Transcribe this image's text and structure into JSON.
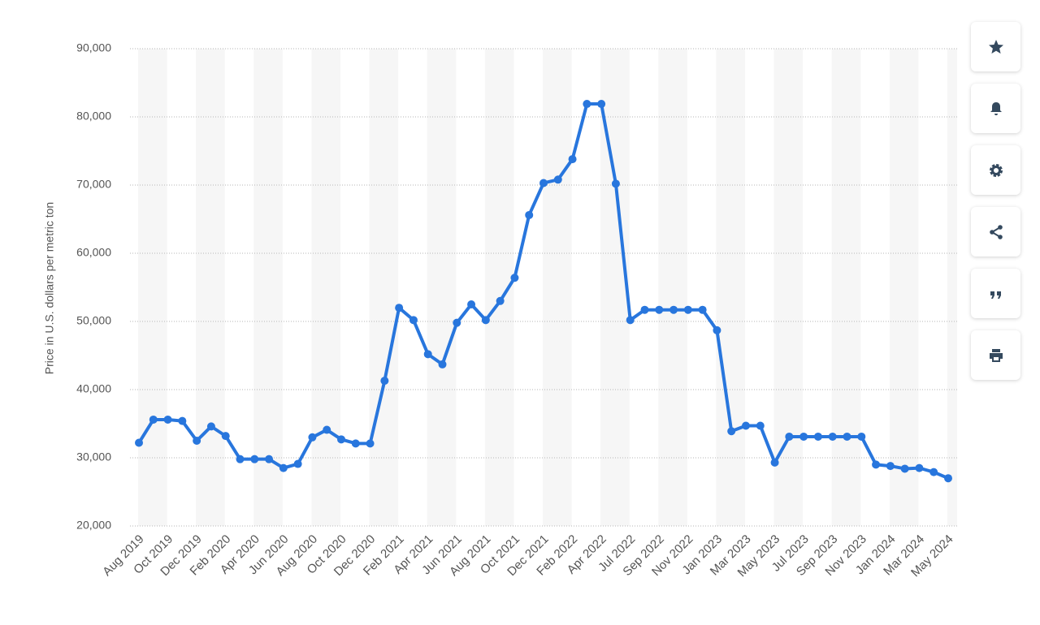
{
  "chart_data": {
    "type": "line",
    "y_label": "Price in U.S. dollars per metric ton",
    "categories": [
      "Aug 2019",
      null,
      "Oct 2019",
      null,
      "Dec 2019",
      null,
      "Feb 2020",
      null,
      "Apr 2020",
      null,
      "Jun 2020",
      null,
      "Aug 2020",
      null,
      "Oct 2020",
      null,
      "Dec 2020",
      null,
      "Feb 2021",
      null,
      "Apr 2021",
      null,
      "Jun 2021",
      null,
      "Aug 2021",
      null,
      "Oct 2021",
      null,
      "Dec 2021",
      null,
      "Feb 2022",
      null,
      "Apr 2022",
      null,
      "Jul 2022",
      null,
      "Sep 2022",
      null,
      "Nov 2022",
      null,
      "Jan 2023",
      null,
      "Mar 2023",
      null,
      "May 2023",
      null,
      "Jul 2023",
      null,
      "Sep 2023",
      null,
      "Nov 2023",
      null,
      "Jan 2024",
      null,
      "Mar 2024",
      null,
      "May 2024"
    ],
    "series": [
      {
        "name": "Price",
        "color": "#2876dd",
        "values": [
          32200,
          35600,
          35600,
          35400,
          32500,
          34600,
          33200,
          29800,
          29800,
          29800,
          28500,
          29100,
          33000,
          34100,
          32700,
          32100,
          32100,
          41300,
          52000,
          50200,
          45200,
          43700,
          49800,
          52500,
          50200,
          53000,
          56400,
          65600,
          70300,
          70800,
          73800,
          81900,
          81900,
          70200,
          50200,
          51700,
          51700,
          51700,
          51700,
          51700,
          48700,
          33900,
          34700,
          34700,
          29300,
          33100,
          33100,
          33100,
          33100,
          33100,
          33100,
          29000,
          28800,
          28400,
          28500,
          27900,
          27000
        ]
      }
    ],
    "ylim": [
      20000,
      90000
    ],
    "yticks": [
      {
        "value": 20000,
        "label": "20,000"
      },
      {
        "value": 30000,
        "label": "30,000"
      },
      {
        "value": 40000,
        "label": "40,000"
      },
      {
        "value": 50000,
        "label": "50,000"
      },
      {
        "value": 60000,
        "label": "60,000"
      },
      {
        "value": 70000,
        "label": "70,000"
      },
      {
        "value": 80000,
        "label": "80,000"
      },
      {
        "value": 90000,
        "label": "90,000"
      }
    ],
    "grid": true
  }
}
